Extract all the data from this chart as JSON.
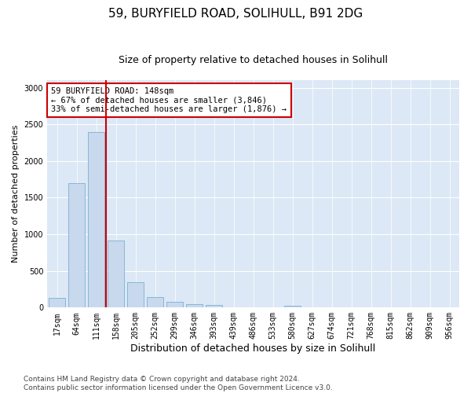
{
  "title1": "59, BURYFIELD ROAD, SOLIHULL, B91 2DG",
  "title2": "Size of property relative to detached houses in Solihull",
  "xlabel": "Distribution of detached houses by size in Solihull",
  "ylabel": "Number of detached properties",
  "categories": [
    "17sqm",
    "64sqm",
    "111sqm",
    "158sqm",
    "205sqm",
    "252sqm",
    "299sqm",
    "346sqm",
    "393sqm",
    "439sqm",
    "486sqm",
    "533sqm",
    "580sqm",
    "627sqm",
    "674sqm",
    "721sqm",
    "768sqm",
    "815sqm",
    "862sqm",
    "909sqm",
    "956sqm"
  ],
  "values": [
    130,
    1700,
    2390,
    910,
    350,
    140,
    80,
    50,
    40,
    0,
    0,
    0,
    30,
    0,
    0,
    0,
    0,
    0,
    0,
    0,
    0
  ],
  "bar_color": "#c8d9ed",
  "bar_edge_color": "#7aafd4",
  "vline_color": "#cc0000",
  "annotation_text": "59 BURYFIELD ROAD: 148sqm\n← 67% of detached houses are smaller (3,846)\n33% of semi-detached houses are larger (1,876) →",
  "annotation_box_color": "#ffffff",
  "annotation_box_edge": "#cc0000",
  "ylim": [
    0,
    3100
  ],
  "yticks": [
    0,
    500,
    1000,
    1500,
    2000,
    2500,
    3000
  ],
  "plot_bg_color": "#dce8f5",
  "footer_text": "Contains HM Land Registry data © Crown copyright and database right 2024.\nContains public sector information licensed under the Open Government Licence v3.0.",
  "title1_fontsize": 11,
  "title2_fontsize": 9,
  "xlabel_fontsize": 9,
  "ylabel_fontsize": 8,
  "tick_fontsize": 7,
  "annotation_fontsize": 7.5,
  "footer_fontsize": 6.5
}
